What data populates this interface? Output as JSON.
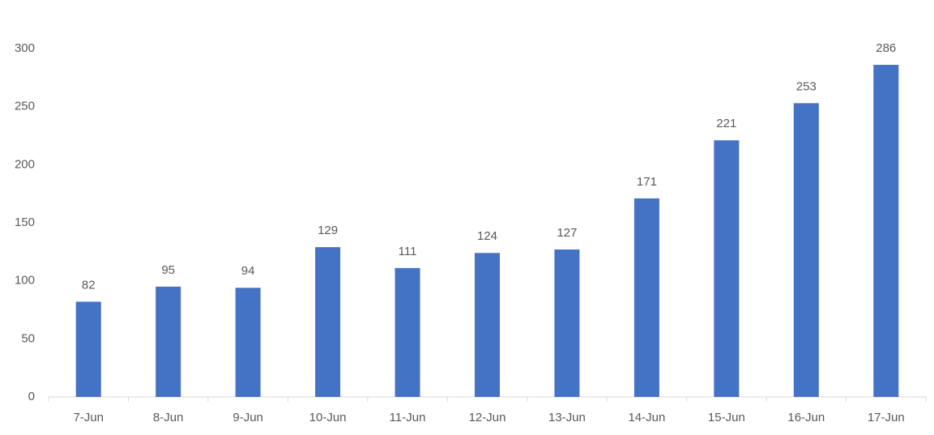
{
  "chart_data": {
    "type": "bar",
    "categories": [
      "7-Jun",
      "8-Jun",
      "9-Jun",
      "10-Jun",
      "11-Jun",
      "12-Jun",
      "13-Jun",
      "14-Jun",
      "15-Jun",
      "16-Jun",
      "17-Jun"
    ],
    "values": [
      82,
      95,
      94,
      129,
      111,
      124,
      127,
      171,
      221,
      253,
      286
    ],
    "color": "#4472c4",
    "ylim": [
      0,
      300
    ],
    "yticks": [
      0,
      50,
      100,
      150,
      200,
      250,
      300
    ],
    "grid": false,
    "data_labels": true
  }
}
